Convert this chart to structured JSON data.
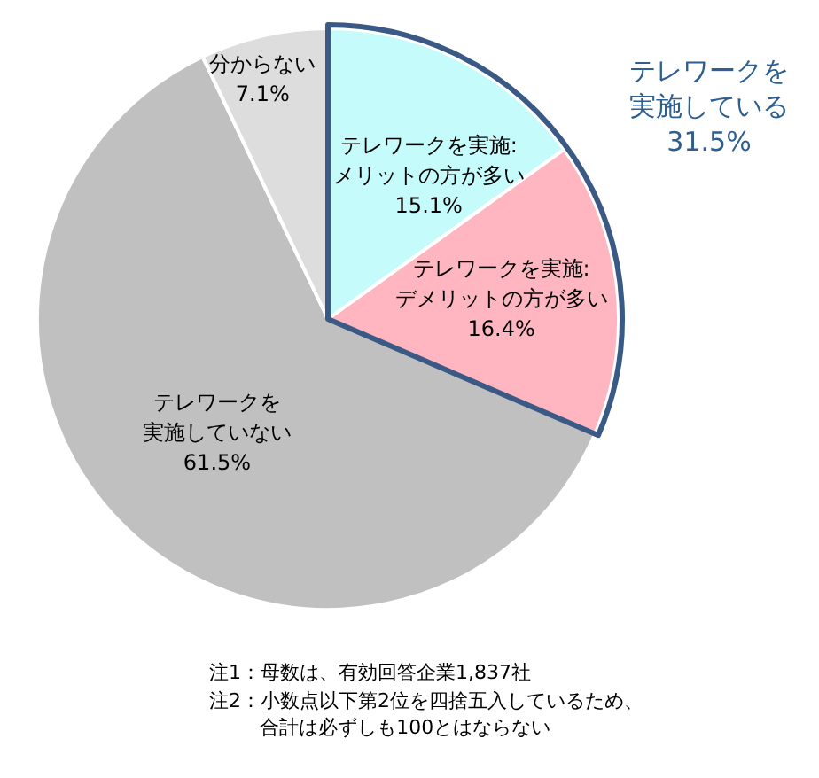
{
  "chart_data": {
    "type": "pie",
    "categories": [
      "テレワークを実施:メリットの方が多い",
      "テレワークを実施:デメリットの方が多い",
      "テレワークを実施していない",
      "分からない"
    ],
    "values": [
      15.1,
      16.4,
      61.5,
      7.1
    ],
    "colors": [
      "#c6fbfb",
      "#ffb6c1",
      "#c0c0c0",
      "#dddddd"
    ],
    "value_labels": [
      "15.1%",
      "16.4%",
      "61.5%",
      "7.1%"
    ],
    "legend": false,
    "annotations": [
      "テレワークを実施している31.5%",
      "注1：母数は、有効回答企業1,837社",
      "注2：小数点以下第2位を四捨五入しているため、合計は必ずしも100とはならない"
    ]
  }
}
